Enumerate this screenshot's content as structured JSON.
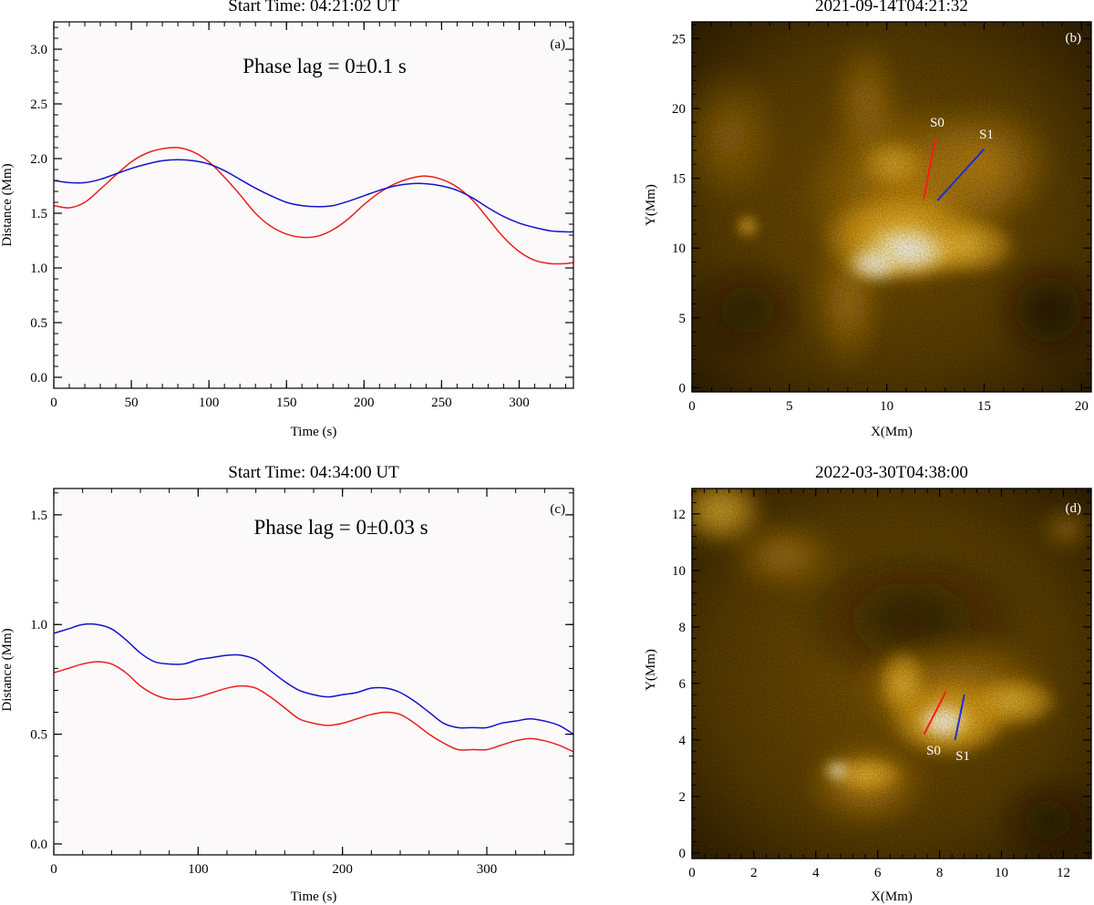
{
  "panels": [
    {
      "id": "a",
      "title": "Start Time: 04:21:02 UT",
      "panel_label": "(a)",
      "annotation": "Phase lag = 0±0.1 s",
      "xlabel": "Time (s)",
      "ylabel": "Distance (Mm)",
      "colors": {
        "s0": "#e8201e",
        "s1": "#1414c8"
      }
    },
    {
      "id": "b",
      "title": "2021-09-14T04:21:32",
      "panel_label": "(b)",
      "xlabel": "X(Mm)",
      "ylabel": "Y(Mm)",
      "slit_labels": [
        "S0",
        "S1"
      ],
      "colors": {
        "s0": "#ff1a1a",
        "s1": "#1a2fd6"
      }
    },
    {
      "id": "c",
      "title": "Start Time: 04:34:00 UT",
      "panel_label": "(c)",
      "annotation": "Phase lag = 0±0.03 s",
      "xlabel": "Time (s)",
      "ylabel": "Distance (Mm)",
      "colors": {
        "s0": "#e8201e",
        "s1": "#1414c8"
      }
    },
    {
      "id": "d",
      "title": "2022-03-30T04:38:00",
      "panel_label": "(d)",
      "xlabel": "X(Mm)",
      "ylabel": "Y(Mm)",
      "slit_labels": [
        "S0",
        "S1"
      ],
      "colors": {
        "s0": "#ff1a1a",
        "s1": "#1a2fd6"
      }
    }
  ],
  "chart_data": [
    {
      "type": "line",
      "panel": "a",
      "xlim": [
        0,
        335
      ],
      "ylim": [
        -0.1,
        3.25
      ],
      "xticks": [
        0,
        50,
        100,
        150,
        200,
        250,
        300
      ],
      "yticks": [
        0.0,
        0.5,
        1.0,
        1.5,
        2.0,
        2.5,
        3.0
      ],
      "series": [
        {
          "key": "s0",
          "x": [
            0,
            10,
            20,
            30,
            40,
            50,
            60,
            70,
            80,
            90,
            100,
            110,
            120,
            130,
            140,
            150,
            160,
            170,
            180,
            190,
            200,
            210,
            220,
            230,
            240,
            250,
            260,
            270,
            280,
            290,
            300,
            310,
            320,
            330,
            335
          ],
          "y": [
            1.57,
            1.55,
            1.6,
            1.72,
            1.85,
            1.97,
            2.05,
            2.09,
            2.1,
            2.06,
            1.97,
            1.83,
            1.67,
            1.5,
            1.38,
            1.31,
            1.28,
            1.29,
            1.35,
            1.45,
            1.58,
            1.69,
            1.77,
            1.82,
            1.84,
            1.81,
            1.74,
            1.62,
            1.45,
            1.28,
            1.15,
            1.07,
            1.04,
            1.04,
            1.05
          ]
        },
        {
          "key": "s1",
          "x": [
            0,
            10,
            20,
            30,
            40,
            50,
            60,
            70,
            80,
            90,
            100,
            110,
            120,
            130,
            140,
            150,
            160,
            170,
            180,
            190,
            200,
            210,
            220,
            230,
            240,
            250,
            260,
            270,
            280,
            290,
            300,
            310,
            320,
            330,
            335
          ],
          "y": [
            1.8,
            1.78,
            1.78,
            1.81,
            1.86,
            1.91,
            1.95,
            1.98,
            1.99,
            1.98,
            1.95,
            1.89,
            1.81,
            1.73,
            1.66,
            1.6,
            1.57,
            1.56,
            1.57,
            1.61,
            1.66,
            1.71,
            1.75,
            1.77,
            1.77,
            1.75,
            1.71,
            1.64,
            1.55,
            1.47,
            1.41,
            1.37,
            1.34,
            1.33,
            1.33
          ]
        }
      ]
    },
    {
      "type": "heatmap",
      "panel": "b",
      "xlim": [
        0,
        20.5
      ],
      "ylim": [
        -0.3,
        26.2
      ],
      "xticks": [
        0,
        5,
        10,
        15,
        20
      ],
      "yticks": [
        0,
        5,
        10,
        15,
        20,
        25
      ],
      "slits": [
        {
          "name": "S0",
          "from": [
            11.9,
            13.5
          ],
          "to": [
            12.5,
            17.9
          ]
        },
        {
          "name": "S1",
          "from": [
            12.6,
            13.4
          ],
          "to": [
            15.0,
            17.1
          ]
        }
      ]
    },
    {
      "type": "line",
      "panel": "c",
      "xlim": [
        0,
        360
      ],
      "ylim": [
        -0.05,
        1.62
      ],
      "xticks": [
        0,
        100,
        200,
        300
      ],
      "yticks": [
        0.0,
        0.5,
        1.0,
        1.5
      ],
      "series": [
        {
          "key": "s0",
          "x": [
            0,
            10,
            20,
            30,
            40,
            50,
            60,
            70,
            80,
            90,
            100,
            110,
            120,
            130,
            140,
            150,
            160,
            170,
            180,
            190,
            200,
            210,
            220,
            230,
            240,
            250,
            260,
            270,
            280,
            290,
            300,
            310,
            320,
            330,
            340,
            350,
            360
          ],
          "y": [
            0.78,
            0.8,
            0.82,
            0.83,
            0.82,
            0.78,
            0.72,
            0.68,
            0.66,
            0.66,
            0.67,
            0.69,
            0.71,
            0.72,
            0.71,
            0.67,
            0.62,
            0.57,
            0.55,
            0.54,
            0.55,
            0.57,
            0.59,
            0.6,
            0.59,
            0.55,
            0.5,
            0.46,
            0.43,
            0.43,
            0.43,
            0.45,
            0.47,
            0.48,
            0.47,
            0.45,
            0.42
          ]
        },
        {
          "key": "s1",
          "x": [
            0,
            10,
            20,
            30,
            40,
            50,
            60,
            70,
            80,
            90,
            100,
            110,
            120,
            130,
            140,
            150,
            160,
            170,
            180,
            190,
            200,
            210,
            220,
            230,
            240,
            250,
            260,
            270,
            280,
            290,
            300,
            310,
            320,
            330,
            340,
            350,
            360
          ],
          "y": [
            0.96,
            0.98,
            1.0,
            1.0,
            0.98,
            0.93,
            0.87,
            0.83,
            0.82,
            0.82,
            0.84,
            0.85,
            0.86,
            0.86,
            0.84,
            0.79,
            0.74,
            0.7,
            0.68,
            0.67,
            0.68,
            0.69,
            0.71,
            0.71,
            0.69,
            0.65,
            0.6,
            0.55,
            0.53,
            0.53,
            0.53,
            0.55,
            0.56,
            0.57,
            0.56,
            0.54,
            0.5
          ]
        }
      ]
    },
    {
      "type": "heatmap",
      "panel": "d",
      "xlim": [
        0,
        12.9
      ],
      "ylim": [
        -0.2,
        12.9
      ],
      "xticks": [
        0,
        2,
        4,
        6,
        8,
        10,
        12
      ],
      "yticks": [
        0,
        2,
        4,
        6,
        8,
        10,
        12
      ],
      "slits": [
        {
          "name": "S0",
          "from": [
            7.5,
            4.2
          ],
          "to": [
            8.2,
            5.7
          ]
        },
        {
          "name": "S1",
          "from": [
            8.5,
            4.0
          ],
          "to": [
            8.8,
            5.6
          ]
        }
      ]
    }
  ]
}
